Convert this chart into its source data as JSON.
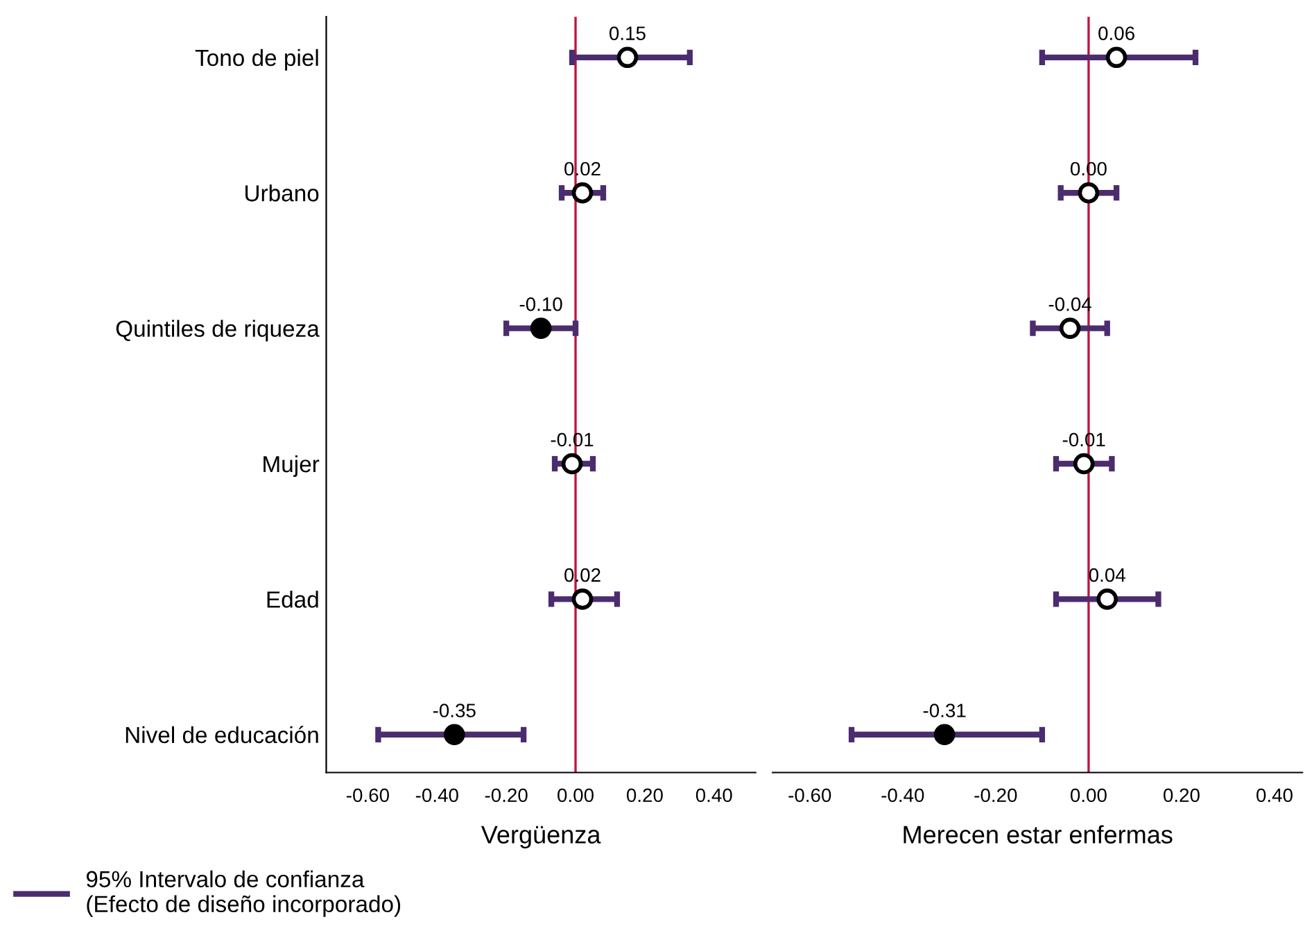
{
  "chart_data": [
    {
      "type": "scatter",
      "orientation": "horizontal",
      "xlabel": "Vergüenza",
      "categories": [
        "Tono de piel",
        "Urbano",
        "Quintiles de riqueza",
        "Mujer",
        "Edad",
        "Nivel de educación"
      ],
      "series": [
        {
          "name": "95% Intervalo de confianza\n(Efecto de diseño incorporado)",
          "color": "#4b2c6e",
          "values": [
            0.15,
            0.02,
            -0.1,
            -0.01,
            0.02,
            -0.35
          ],
          "value_labels": [
            "0.15",
            "0.02",
            "-0.10",
            "-0.01",
            "0.02",
            "-0.35"
          ],
          "errors": [
            [
              -0.01,
              0.33
            ],
            [
              -0.04,
              0.08
            ],
            [
              -0.2,
              0.0
            ],
            [
              -0.06,
              0.05
            ],
            [
              -0.07,
              0.12
            ],
            [
              -0.57,
              -0.15
            ]
          ],
          "colors": [
            "#ffffff",
            "#ffffff",
            "#000000",
            "#ffffff",
            "#ffffff",
            "#000000"
          ]
        }
      ],
      "marker": "circle",
      "xlim": [
        -0.72,
        0.52
      ],
      "xticks": [
        {
          "value": -0.6,
          "label": "-0.60"
        },
        {
          "value": -0.4,
          "label": "-0.40"
        },
        {
          "value": -0.2,
          "label": "-0.20"
        },
        {
          "value": 0,
          "label": "0.00"
        },
        {
          "value": 0.2,
          "label": "0.20"
        },
        {
          "value": 0.4,
          "label": "0.40"
        }
      ],
      "ref_lines": [
        {
          "axis": "x",
          "value": 0,
          "color": "#c0143c"
        }
      ],
      "legend": "bottom left",
      "grid": false
    },
    {
      "type": "scatter",
      "orientation": "horizontal",
      "xlabel": "Merecen estar enfermas",
      "categories": [
        null,
        null,
        null,
        null,
        null,
        null
      ],
      "series": [
        {
          "color": "#4b2c6e",
          "values": [
            0.06,
            0.0,
            -0.04,
            -0.01,
            0.04,
            -0.31
          ],
          "value_labels": [
            "0.06",
            "0.00",
            "-0.04",
            "-0.01",
            "0.04",
            "-0.31"
          ],
          "errors": [
            [
              -0.1,
              0.23
            ],
            [
              -0.06,
              0.06
            ],
            [
              -0.12,
              0.04
            ],
            [
              -0.07,
              0.05
            ],
            [
              -0.07,
              0.15
            ],
            [
              -0.51,
              -0.1
            ]
          ],
          "colors": [
            "#ffffff",
            "#ffffff",
            "#ffffff",
            "#ffffff",
            "#ffffff",
            "#000000"
          ]
        }
      ],
      "marker": "circle",
      "xlim": [
        -0.68,
        0.46
      ],
      "xticks": [
        {
          "value": -0.6,
          "label": "-0.60"
        },
        {
          "value": -0.4,
          "label": "-0.40"
        },
        {
          "value": -0.2,
          "label": "-0.20"
        },
        {
          "value": 0,
          "label": "0.00"
        },
        {
          "value": 0.2,
          "label": "0.20"
        },
        {
          "value": 0.4,
          "label": "0.40"
        }
      ],
      "ref_lines": [
        {
          "axis": "x",
          "value": 0,
          "color": "#c0143c"
        }
      ],
      "tick_labels": "x",
      "grid": false
    }
  ]
}
